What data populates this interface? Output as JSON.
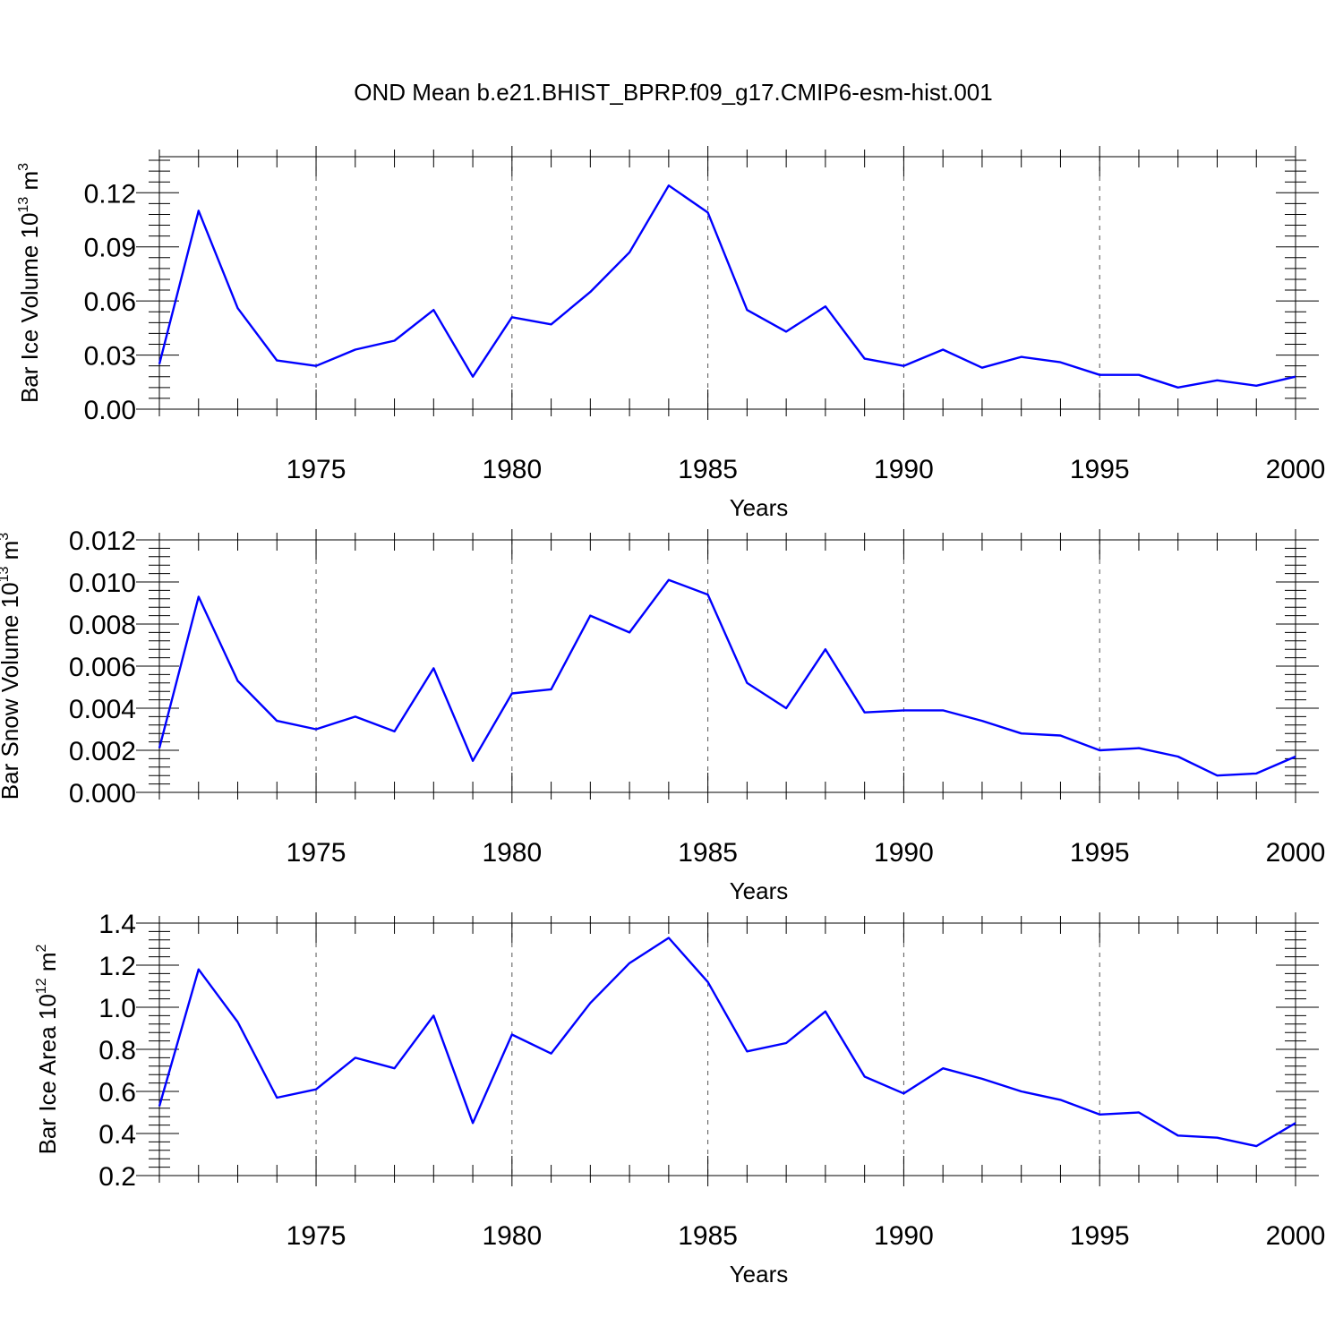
{
  "figure_title": "OND Mean b.e21.BHIST_BPRP.f09_g17.CMIP6-esm-hist.001",
  "colors": {
    "series": "#0000ff",
    "grid": "#555555",
    "axes": "#000000"
  },
  "chart_data": [
    {
      "type": "line",
      "ylabel": {
        "text": "Bar Ice Volume 10",
        "sup": "13",
        "unit": " m",
        "unit_sup": "3"
      },
      "xlabel": "Years",
      "xlim": [
        1971,
        2000
      ],
      "ylim": [
        0,
        0.14
      ],
      "yticks": [
        0.0,
        0.03,
        0.06,
        0.09,
        0.12
      ],
      "yticklabels": [
        "0.00",
        "0.03",
        "0.06",
        "0.09",
        "0.12"
      ],
      "yminor_step": 0.006,
      "xticks": [
        1975,
        1980,
        1985,
        1990,
        1995,
        2000
      ],
      "xticklabels": [
        "1975",
        "1980",
        "1985",
        "1990",
        "1995",
        "2000"
      ],
      "grid": "vertical dashed at major x ticks",
      "x": [
        1971,
        1972,
        1973,
        1974,
        1975,
        1976,
        1977,
        1978,
        1979,
        1980,
        1981,
        1982,
        1983,
        1984,
        1985,
        1986,
        1987,
        1988,
        1989,
        1990,
        1991,
        1992,
        1993,
        1994,
        1995,
        1996,
        1997,
        1998,
        1999,
        2000
      ],
      "series": [
        {
          "values": [
            0.025,
            0.11,
            0.056,
            0.027,
            0.024,
            0.033,
            0.038,
            0.055,
            0.018,
            0.051,
            0.047,
            0.065,
            0.087,
            0.124,
            0.109,
            0.055,
            0.043,
            0.057,
            0.028,
            0.024,
            0.033,
            0.023,
            0.029,
            0.026,
            0.019,
            0.019,
            0.012,
            0.016,
            0.013,
            0.018
          ]
        }
      ]
    },
    {
      "type": "line",
      "ylabel": {
        "text": "Bar Snow Volume 10",
        "sup": "13",
        "unit": " m",
        "unit_sup": "3"
      },
      "xlabel": "Years",
      "xlim": [
        1971,
        2000
      ],
      "ylim": [
        0,
        0.012
      ],
      "yticks": [
        0.0,
        0.002,
        0.004,
        0.006,
        0.008,
        0.01,
        0.012
      ],
      "yticklabels": [
        "0.000",
        "0.002",
        "0.004",
        "0.006",
        "0.008",
        "0.010",
        "0.012"
      ],
      "yminor_step": 0.0004,
      "xticks": [
        1975,
        1980,
        1985,
        1990,
        1995,
        2000
      ],
      "xticklabels": [
        "1975",
        "1980",
        "1985",
        "1990",
        "1995",
        "2000"
      ],
      "grid": "vertical dashed at major x ticks",
      "x": [
        1971,
        1972,
        1973,
        1974,
        1975,
        1976,
        1977,
        1978,
        1979,
        1980,
        1981,
        1982,
        1983,
        1984,
        1985,
        1986,
        1987,
        1988,
        1989,
        1990,
        1991,
        1992,
        1993,
        1994,
        1995,
        1996,
        1997,
        1998,
        1999,
        2000
      ],
      "series": [
        {
          "values": [
            0.0021,
            0.0093,
            0.0053,
            0.0034,
            0.003,
            0.0036,
            0.0029,
            0.0059,
            0.0015,
            0.0047,
            0.0049,
            0.0084,
            0.0076,
            0.0101,
            0.0094,
            0.0052,
            0.004,
            0.0068,
            0.0038,
            0.0039,
            0.0039,
            0.0034,
            0.0028,
            0.0027,
            0.002,
            0.0021,
            0.0017,
            0.0008,
            0.0009,
            0.0017
          ]
        }
      ]
    },
    {
      "type": "line",
      "ylabel": {
        "text": "Bar Ice Area 10",
        "sup": "12",
        "unit": " m",
        "unit_sup": "2"
      },
      "xlabel": "Years",
      "xlim": [
        1971,
        2000
      ],
      "ylim": [
        0.2,
        1.4
      ],
      "yticks": [
        0.2,
        0.4,
        0.6,
        0.8,
        1.0,
        1.2,
        1.4
      ],
      "yticklabels": [
        "0.2",
        "0.4",
        "0.6",
        "0.8",
        "1.0",
        "1.2",
        "1.4"
      ],
      "yminor_step": 0.04,
      "xticks": [
        1975,
        1980,
        1985,
        1990,
        1995,
        2000
      ],
      "xticklabels": [
        "1975",
        "1980",
        "1985",
        "1990",
        "1995",
        "2000"
      ],
      "grid": "vertical dashed at major x ticks",
      "x": [
        1971,
        1972,
        1973,
        1974,
        1975,
        1976,
        1977,
        1978,
        1979,
        1980,
        1981,
        1982,
        1983,
        1984,
        1985,
        1986,
        1987,
        1988,
        1989,
        1990,
        1991,
        1992,
        1993,
        1994,
        1995,
        1996,
        1997,
        1998,
        1999,
        2000
      ],
      "series": [
        {
          "values": [
            0.53,
            1.18,
            0.93,
            0.57,
            0.61,
            0.76,
            0.71,
            0.96,
            0.45,
            0.87,
            0.78,
            1.02,
            1.21,
            1.33,
            1.12,
            0.79,
            0.83,
            0.98,
            0.67,
            0.59,
            0.71,
            0.66,
            0.6,
            0.56,
            0.49,
            0.5,
            0.39,
            0.38,
            0.34,
            0.45
          ]
        }
      ]
    }
  ]
}
